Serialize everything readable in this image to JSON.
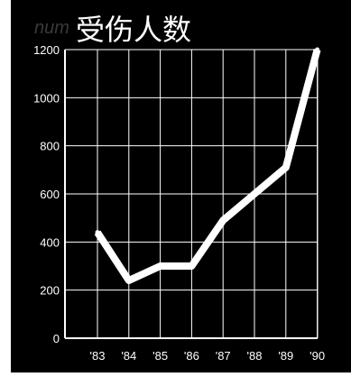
{
  "colors": {
    "background": "#000000",
    "foreground": "#ffffff",
    "faint_text": "#3a3a3a"
  },
  "chart_data": {
    "type": "line",
    "title": "受伤人数",
    "faint_text": "num",
    "x": [
      "'83",
      "'84",
      "'85",
      "'86",
      "'87",
      "'88",
      "'89",
      "'90"
    ],
    "y_ticks": [
      0,
      200,
      400,
      600,
      800,
      1000,
      1200
    ],
    "ylim": [
      0,
      1200
    ],
    "grid": true,
    "series": [
      {
        "values": [
          440,
          240,
          300,
          300,
          490,
          600,
          710,
          1200
        ]
      }
    ]
  }
}
